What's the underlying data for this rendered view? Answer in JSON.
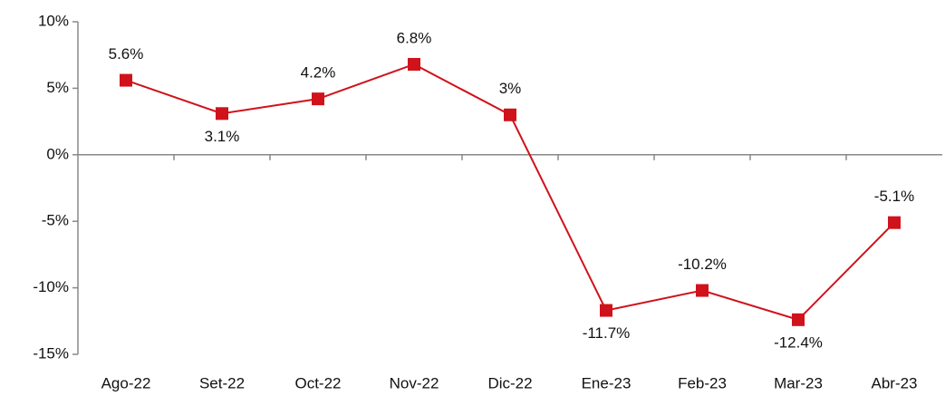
{
  "chart_data": {
    "type": "line",
    "categories": [
      "Ago-22",
      "Set-22",
      "Oct-22",
      "Nov-22",
      "Dic-22",
      "Ene-23",
      "Feb-23",
      "Mar-23",
      "Abr-23"
    ],
    "series": [
      {
        "color": "#d0121b",
        "values": [
          5.6,
          3.1,
          4.2,
          6.8,
          3,
          -11.7,
          -10.2,
          -12.4,
          -5.1
        ],
        "value_labels": [
          "5.6%",
          "3.1%",
          "4.2%",
          "6.8%",
          "3%",
          "-11.7%",
          "-10.2%",
          "-12.4%",
          "-5.1%"
        ]
      }
    ],
    "ylim": [
      -15,
      10
    ],
    "yticks": [
      {
        "value": -15,
        "label": "-15%"
      },
      {
        "value": -10,
        "label": "-10%"
      },
      {
        "value": -5,
        "label": "-5%"
      },
      {
        "value": 0,
        "label": "0%"
      },
      {
        "value": 5,
        "label": "5%"
      },
      {
        "value": 10,
        "label": "10%"
      }
    ]
  }
}
